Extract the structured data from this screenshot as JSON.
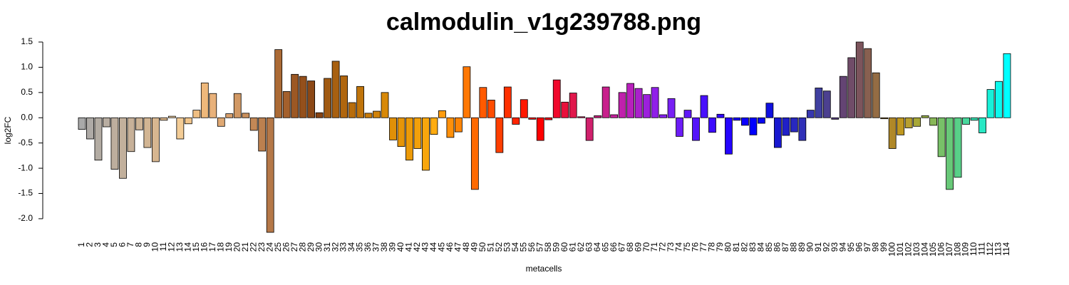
{
  "chart_data": {
    "type": "bar",
    "title": "calmodulin_v1g239788.png",
    "x_label": "metacells",
    "y_label": "log2FC",
    "ylim": [
      -2.4,
      1.6
    ],
    "yticks": [
      {
        "value": -2,
        "label": "-2.0"
      },
      -1.5,
      {
        "value": -1,
        "label": "-1.0"
      },
      -0.5,
      {
        "value": 0,
        "label": "0.0"
      },
      0.5,
      {
        "value": 1,
        "label": "1.0"
      },
      1.5
    ],
    "categories": [
      "1",
      "2",
      "3",
      "4",
      "5",
      "6",
      "7",
      "8",
      "9",
      "10",
      "11",
      "12",
      "13",
      "14",
      "15",
      "16",
      "17",
      "18",
      "19",
      "20",
      "21",
      "22",
      "23",
      "24",
      "25",
      "26",
      "27",
      "28",
      "29",
      "30",
      "31",
      "32",
      "33",
      "34",
      "35",
      "36",
      "37",
      "38",
      "39",
      "40",
      "41",
      "42",
      "43",
      "44",
      "45",
      "46",
      "47",
      "48",
      "49",
      "50",
      "51",
      "52",
      "53",
      "54",
      "55",
      "56",
      "57",
      "58",
      "59",
      "60",
      "61",
      "62",
      "63",
      "64",
      "65",
      "66",
      "67",
      "68",
      "69",
      "70",
      "71",
      "72",
      "73",
      "74",
      "75",
      "76",
      "77",
      "78",
      "79",
      "80",
      "81",
      "82",
      "83",
      "84",
      "85",
      "86",
      "87",
      "88",
      "89",
      "90",
      "91",
      "92",
      "93",
      "94",
      "95",
      "96",
      "97",
      "98",
      "99",
      "100",
      "101",
      "102",
      "103",
      "104",
      "105",
      "106",
      "107",
      "108",
      "109",
      "110",
      "111",
      "112",
      "113",
      "114"
    ],
    "values": [
      -0.23,
      -0.42,
      -0.84,
      -0.18,
      -1.02,
      -1.2,
      -0.67,
      -0.24,
      -0.59,
      -0.87,
      -0.05,
      0.03,
      -0.42,
      -0.12,
      0.15,
      0.69,
      0.48,
      -0.17,
      0.08,
      0.48,
      0.09,
      -0.25,
      -0.66,
      -2.27,
      1.35,
      0.52,
      0.86,
      0.82,
      0.73,
      0.1,
      0.78,
      1.12,
      0.83,
      0.3,
      0.62,
      0.09,
      0.13,
      0.5,
      -0.44,
      -0.57,
      -0.84,
      -0.61,
      -1.04,
      -0.33,
      0.14,
      -0.39,
      -0.28,
      1.01,
      -1.42,
      0.6,
      0.35,
      -0.69,
      0.61,
      -0.13,
      0.36,
      -0.03,
      -0.45,
      -0.04,
      0.75,
      0.31,
      0.49,
      0.02,
      -0.45,
      0.04,
      0.61,
      0.06,
      0.5,
      0.68,
      0.58,
      0.46,
      0.6,
      0.06,
      0.38,
      -0.37,
      0.15,
      -0.45,
      0.44,
      -0.29,
      0.07,
      -0.72,
      -0.05,
      -0.15,
      -0.34,
      -0.11,
      0.29,
      -0.59,
      -0.35,
      -0.28,
      -0.45,
      0.15,
      0.59,
      0.53,
      -0.03,
      0.82,
      1.19,
      1.5,
      1.37,
      0.89,
      -0.02,
      -0.61,
      -0.34,
      -0.2,
      -0.17,
      0.04,
      -0.15,
      -0.77,
      -1.42,
      -1.18,
      -0.13,
      -0.05,
      -0.3,
      0.56,
      0.72,
      1.27
    ],
    "colors": [
      "#a9a9a9",
      "#aeaaa6",
      "#b3aca3",
      "#b8ada1",
      "#bdae9e",
      "#c2b09c",
      "#c7b199",
      "#ccb396",
      "#d2b593",
      "#d7b690",
      "#dcb88d",
      "#f5d3a0",
      "#f3cc96",
      "#f1c58c",
      "#efbe82",
      "#eeb87b",
      "#e8b17a",
      "#dfa873",
      "#d89f6b",
      "#d19864",
      "#ca905d",
      "#c38856",
      "#bc804f",
      "#b57848",
      "#ab6a35",
      "#a4602c",
      "#9c5824",
      "#94501c",
      "#8c4816",
      "#874313",
      "#a05a12",
      "#a86010",
      "#b0660e",
      "#b86d0c",
      "#c0740b",
      "#c87b0a",
      "#d08209",
      "#d88908",
      "#e09008",
      "#e69508",
      "#ec9a08",
      "#f2a00a",
      "#f8a60c",
      "#ffac10",
      "#ff9c0e",
      "#ff900a",
      "#ff8406",
      "#ff7804",
      "#ff6a00",
      "#ff5a00",
      "#ff4c00",
      "#ff3e00",
      "#ff3000",
      "#ff2400",
      "#ff1800",
      "#ff0c00",
      "#ff0000",
      "#f80018",
      "#f0082c",
      "#e8103c",
      "#e0184c",
      "#d81c5c",
      "#d0206c",
      "#c8207c",
      "#c8208c",
      "#c4209c",
      "#c020ac",
      "#b820bc",
      "#aa20cc",
      "#9c20dc",
      "#9020e8",
      "#8420f0",
      "#7820f4",
      "#6c1cf6",
      "#6018f8",
      "#5414fa",
      "#4810fc",
      "#3c0cfd",
      "#3008fe",
      "#2404ff",
      "#1802ff",
      "#0c00ff",
      "#0000ff",
      "#0808f0",
      "#1010e0",
      "#1818d0",
      "#2020c8",
      "#2828c0",
      "#3030b8",
      "#3838b0",
      "#4040a0",
      "#4c4090",
      "#584080",
      "#644474",
      "#704c68",
      "#7c545c",
      "#886050",
      "#946c44",
      "#a07838",
      "#b08828",
      "#c09820",
      "#b8a030",
      "#a8a838",
      "#98b048",
      "#88b858",
      "#78c068",
      "#68c878",
      "#58d088",
      "#48d89c",
      "#38e0b0",
      "#28e8c4",
      "#18f0d8",
      "#0cf8ec",
      "#00ffff"
    ]
  }
}
